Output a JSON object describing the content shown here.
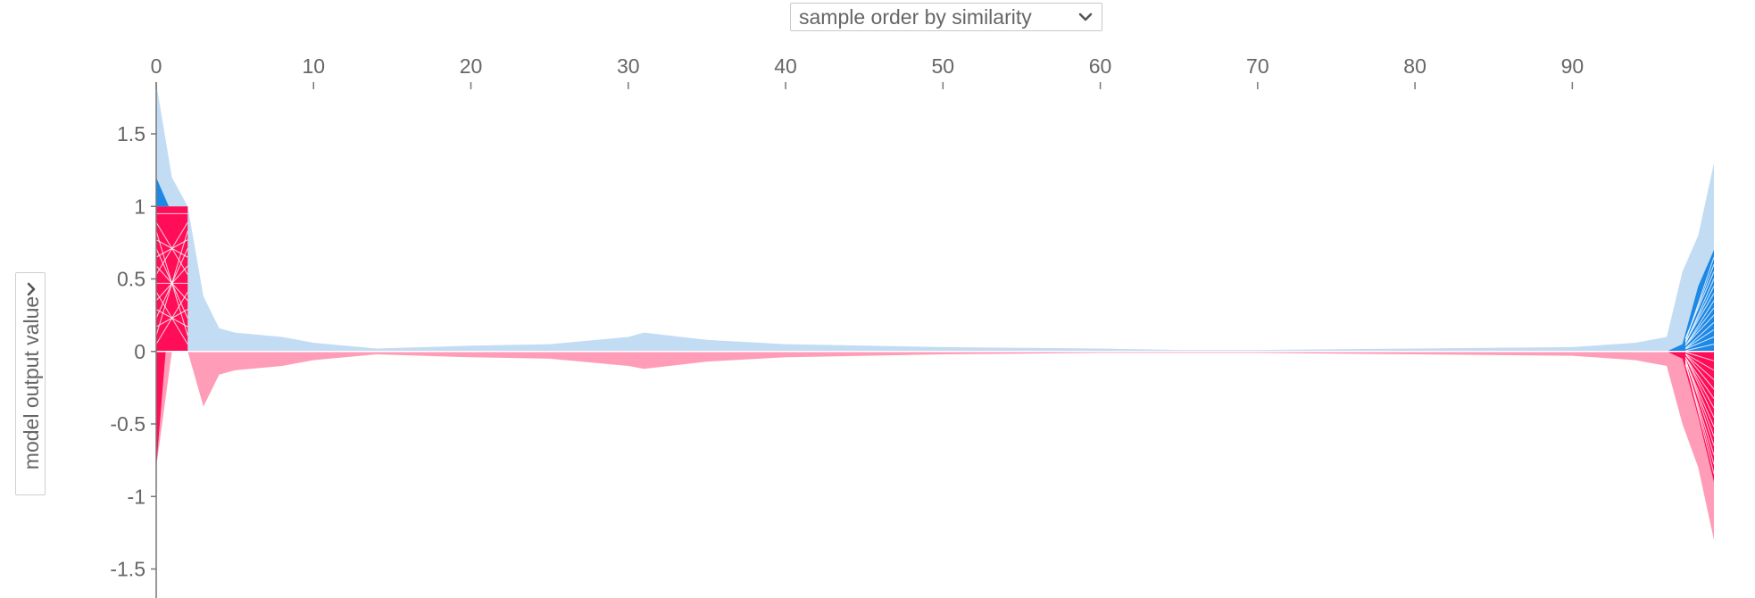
{
  "controls": {
    "order_select_value": "sample order by similarity"
  },
  "chart_data": {
    "type": "area",
    "title": "",
    "xlabel": "",
    "ylabel": "model output value",
    "xlim": [
      0,
      99
    ],
    "ylim": [
      -1.7,
      1.9
    ],
    "x_ticks": [
      0,
      10,
      20,
      30,
      40,
      50,
      60,
      70,
      80,
      90
    ],
    "y_ticks": [
      1.5,
      1,
      0.5,
      0,
      -0.5,
      -1,
      -1.5
    ],
    "colors": {
      "positive_outer": "#c2ddf3",
      "positive_inner": "#1e88e5",
      "negative_outer": "#ff9db8",
      "negative_inner": "#ff0d57",
      "axis": "#777777",
      "zero_line": "#ffffff"
    },
    "series": [
      {
        "name": "",
        "x": [
          0,
          1,
          2,
          3,
          4,
          5,
          8,
          10,
          14,
          20,
          25,
          30,
          31,
          35,
          40,
          50,
          60,
          65,
          70,
          80,
          90,
          94,
          96,
          97,
          98,
          99
        ],
        "values": [
          1.85,
          1.2,
          1.0,
          0.38,
          0.16,
          0.13,
          0.1,
          0.06,
          0.02,
          0.04,
          0.05,
          0.1,
          0.13,
          0.08,
          0.05,
          0.03,
          0.02,
          0.01,
          0.01,
          0.02,
          0.03,
          0.06,
          0.1,
          0.55,
          0.8,
          1.3
        ]
      },
      {
        "name": "",
        "x": [
          0,
          1,
          2,
          3,
          4,
          5,
          8,
          10,
          14,
          20,
          25,
          30,
          31,
          35,
          40,
          50,
          60,
          65,
          70,
          80,
          90,
          94,
          96,
          97,
          98,
          99
        ],
        "values": [
          -0.8,
          0.0,
          0.0,
          -0.38,
          -0.16,
          -0.13,
          -0.1,
          -0.06,
          -0.02,
          -0.04,
          -0.05,
          -0.1,
          -0.12,
          -0.07,
          -0.04,
          -0.02,
          -0.01,
          -0.01,
          -0.01,
          -0.02,
          -0.03,
          -0.06,
          -0.1,
          -0.5,
          -0.8,
          -1.3
        ]
      },
      {
        "name": "",
        "x": [
          0,
          2,
          96,
          97,
          98,
          99
        ],
        "values": [
          1.0,
          1.0,
          0.0,
          0.05,
          0.45,
          0.7
        ]
      },
      {
        "name": "",
        "x": [
          0,
          2,
          96,
          97,
          98,
          99
        ],
        "values": [
          -0.8,
          0.0,
          0.0,
          -0.05,
          -0.45,
          -0.9
        ]
      }
    ]
  }
}
